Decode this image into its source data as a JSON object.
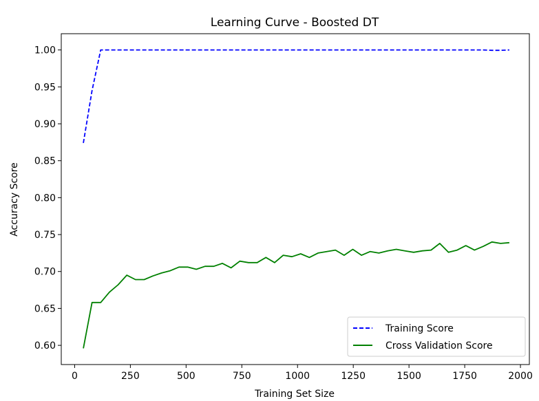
{
  "chart_data": {
    "type": "line",
    "title": "Learning Curve - Boosted DT",
    "xlabel": "Training Set Size",
    "ylabel": "Accuracy Score",
    "xlim": [
      -60,
      2040
    ],
    "ylim": [
      0.574,
      1.022
    ],
    "xticks": [
      0,
      250,
      500,
      750,
      1000,
      1250,
      1500,
      1750,
      2000
    ],
    "xtick_labels": [
      "0",
      "250",
      "500",
      "750",
      "1000",
      "1250",
      "1500",
      "1750",
      "2000"
    ],
    "yticks": [
      0.6,
      0.65,
      0.7,
      0.75,
      0.8,
      0.85,
      0.9,
      0.95,
      1.0
    ],
    "ytick_labels": [
      "0.60",
      "0.65",
      "0.70",
      "0.75",
      "0.80",
      "0.85",
      "0.90",
      "0.95",
      "1.00"
    ],
    "grid": false,
    "legend_position": "lower-right",
    "x": [
      39,
      78,
      117,
      156,
      195,
      234,
      273,
      312,
      351,
      390,
      429,
      468,
      507,
      546,
      585,
      624,
      663,
      702,
      741,
      780,
      819,
      858,
      897,
      936,
      975,
      1014,
      1053,
      1092,
      1131,
      1170,
      1209,
      1248,
      1287,
      1326,
      1365,
      1404,
      1443,
      1482,
      1521,
      1560,
      1599,
      1638,
      1677,
      1716,
      1755,
      1794,
      1833,
      1872,
      1911,
      1950
    ],
    "series": [
      {
        "name": "Training Score",
        "color": "#0000ff",
        "style": "dashed",
        "values": [
          0.874,
          0.945,
          1.0,
          1.0,
          1.0,
          1.0,
          1.0,
          1.0,
          1.0,
          1.0,
          1.0,
          1.0,
          1.0,
          1.0,
          1.0,
          1.0,
          1.0,
          1.0,
          1.0,
          1.0,
          1.0,
          1.0,
          1.0,
          1.0,
          1.0,
          1.0,
          1.0,
          1.0,
          1.0,
          1.0,
          1.0,
          1.0,
          1.0,
          1.0,
          1.0,
          1.0,
          1.0,
          1.0,
          1.0,
          1.0,
          1.0,
          1.0,
          1.0,
          1.0,
          1.0,
          1.0,
          1.0,
          0.9995,
          0.9995,
          1.0
        ]
      },
      {
        "name": "Cross Validation Score",
        "color": "#008000",
        "style": "solid",
        "values": [
          0.596,
          0.658,
          0.658,
          0.672,
          0.682,
          0.695,
          0.689,
          0.689,
          0.694,
          0.698,
          0.701,
          0.706,
          0.706,
          0.703,
          0.707,
          0.707,
          0.711,
          0.705,
          0.714,
          0.712,
          0.712,
          0.719,
          0.712,
          0.722,
          0.72,
          0.724,
          0.719,
          0.725,
          0.727,
          0.729,
          0.722,
          0.73,
          0.722,
          0.727,
          0.725,
          0.728,
          0.73,
          0.728,
          0.726,
          0.728,
          0.729,
          0.738,
          0.726,
          0.729,
          0.735,
          0.729,
          0.734,
          0.74,
          0.738,
          0.739
        ]
      }
    ]
  }
}
